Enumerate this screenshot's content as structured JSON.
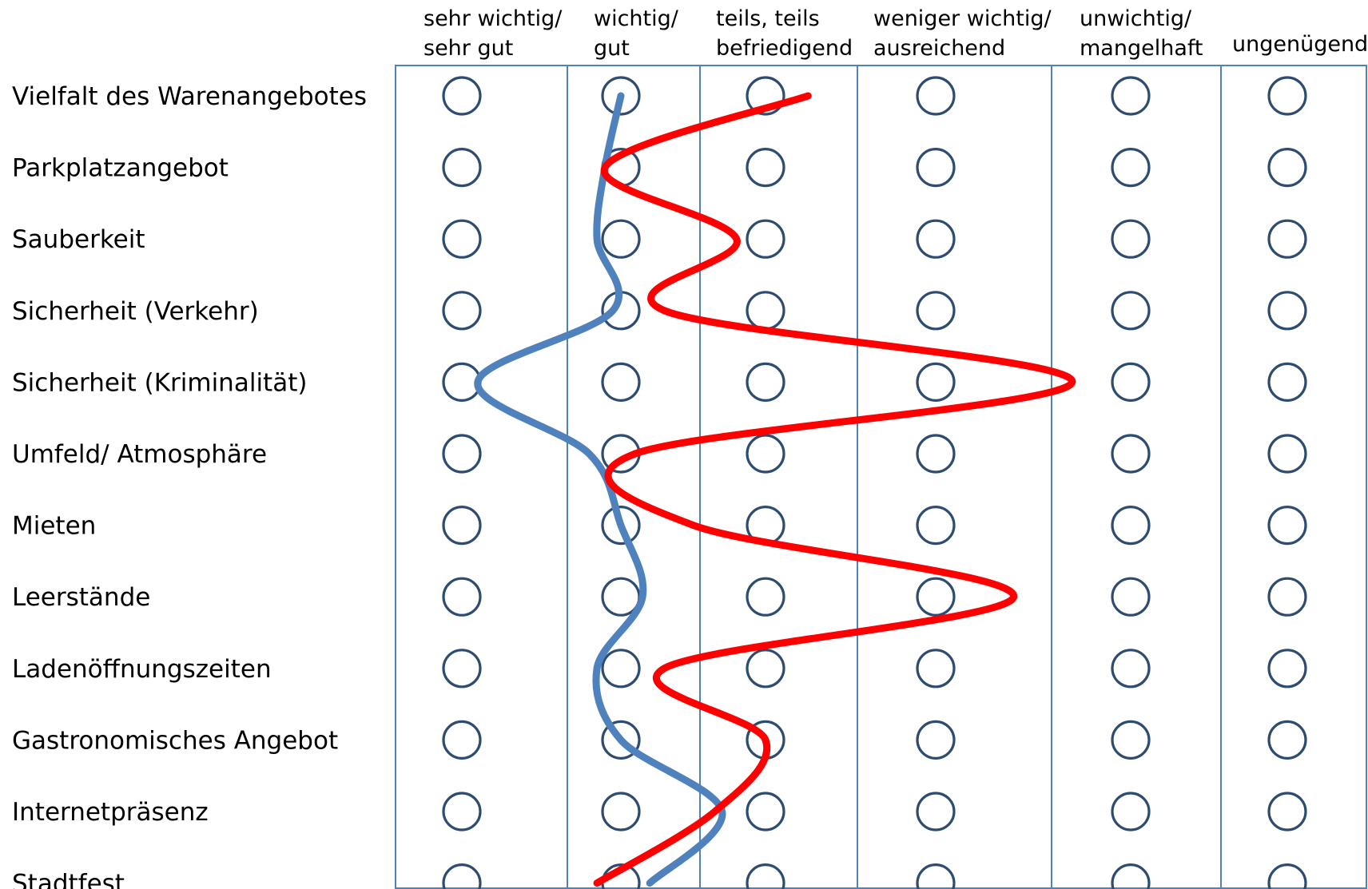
{
  "columns": [
    {
      "line1": "sehr wichtig/",
      "line2": "sehr gut"
    },
    {
      "line1": "wichtig/",
      "line2": "gut"
    },
    {
      "line1": "teils, teils",
      "line2": "befriedigend"
    },
    {
      "line1": "weniger wichtig/",
      "line2": "ausreichend"
    },
    {
      "line1": "unwichtig/",
      "line2": "mangelhaft"
    },
    {
      "line1": "",
      "line2": "ungenügend"
    }
  ],
  "rows": [
    "Vielfalt des Warenangebotes",
    "Parkplatzangebot",
    "Sauberkeit",
    "Sicherheit (Verkehr)",
    "Sicherheit (Kriminalität)",
    "Umfeld/ Atmosphäre",
    "Mieten",
    "Leerstände",
    "Ladenöffnungszeiten",
    "Gastronomisches Angebot",
    "Internetpräsenz",
    "Stadtfest"
  ],
  "colors": {
    "grid": "#4F81BD",
    "circle": "#2E4C70",
    "profile_blue": "#4F81BD",
    "profile_red": "#FF0000"
  },
  "profiles": [
    {
      "color_key": "profile_blue",
      "values": [
        2.0,
        1.9,
        1.85,
        1.95,
        1.1,
        1.8,
        2.0,
        2.15,
        1.85,
        2.0,
        2.7,
        2.2
      ]
    },
    {
      "color_key": "profile_red",
      "values": [
        3.25,
        1.9,
        2.8,
        2.3,
        4.7,
        2.1,
        2.5,
        4.4,
        2.3,
        3.0,
        2.65,
        1.85
      ]
    }
  ]
}
